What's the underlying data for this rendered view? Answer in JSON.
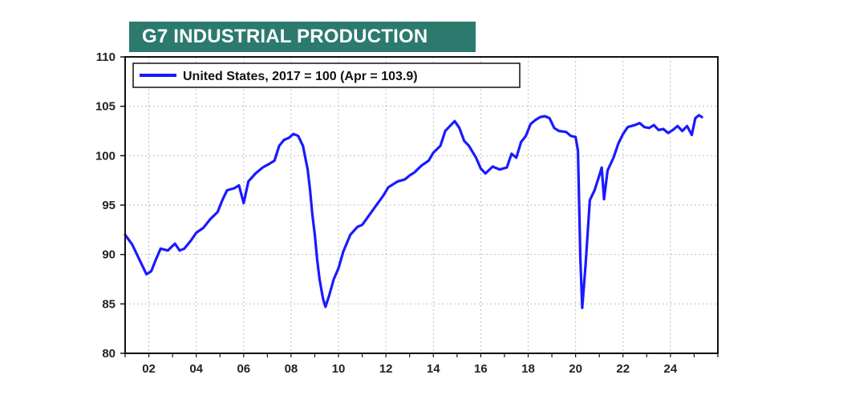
{
  "header": {
    "title": "G7 INDUSTRIAL PRODUCTION"
  },
  "legend": {
    "label": "United States, 2017 = 100 (Apr = 103.9)"
  },
  "colors": {
    "banner": "#2b7a6d",
    "series": "#1a1aff",
    "grid": "#bdbdbd"
  },
  "chart_data": {
    "type": "line",
    "title": "G7 INDUSTRIAL PRODUCTION",
    "xlabel": "",
    "ylabel": "",
    "xlim": [
      2001.0,
      2026.0
    ],
    "ylim": [
      80,
      110
    ],
    "x_ticks": [
      2002,
      2004,
      2006,
      2008,
      2010,
      2012,
      2014,
      2016,
      2018,
      2020,
      2022,
      2024
    ],
    "x_tick_labels": [
      "02",
      "04",
      "06",
      "08",
      "10",
      "12",
      "14",
      "16",
      "18",
      "20",
      "22",
      "24"
    ],
    "y_ticks": [
      80,
      85,
      90,
      95,
      100,
      105,
      110
    ],
    "grid": true,
    "legend_position": "top-left",
    "series": [
      {
        "name": "United States, 2017 = 100 (Apr = 103.9)",
        "color": "#1a1aff",
        "points": [
          [
            2001.0,
            92.0
          ],
          [
            2001.3,
            91.0
          ],
          [
            2001.6,
            89.5
          ],
          [
            2001.9,
            88.0
          ],
          [
            2002.1,
            88.3
          ],
          [
            2002.3,
            89.5
          ],
          [
            2002.5,
            90.6
          ],
          [
            2002.8,
            90.4
          ],
          [
            2003.1,
            91.1
          ],
          [
            2003.3,
            90.4
          ],
          [
            2003.5,
            90.6
          ],
          [
            2003.8,
            91.5
          ],
          [
            2004.0,
            92.2
          ],
          [
            2004.3,
            92.7
          ],
          [
            2004.6,
            93.6
          ],
          [
            2004.9,
            94.3
          ],
          [
            2005.1,
            95.5
          ],
          [
            2005.3,
            96.5
          ],
          [
            2005.6,
            96.7
          ],
          [
            2005.8,
            97.0
          ],
          [
            2006.0,
            95.2
          ],
          [
            2006.2,
            97.4
          ],
          [
            2006.5,
            98.2
          ],
          [
            2006.8,
            98.8
          ],
          [
            2007.1,
            99.2
          ],
          [
            2007.3,
            99.5
          ],
          [
            2007.5,
            101.0
          ],
          [
            2007.7,
            101.6
          ],
          [
            2007.9,
            101.8
          ],
          [
            2008.1,
            102.2
          ],
          [
            2008.3,
            102.0
          ],
          [
            2008.5,
            101.0
          ],
          [
            2008.7,
            98.6
          ],
          [
            2008.8,
            96.5
          ],
          [
            2008.9,
            94.0
          ],
          [
            2009.0,
            92.0
          ],
          [
            2009.1,
            89.5
          ],
          [
            2009.2,
            87.5
          ],
          [
            2009.35,
            85.5
          ],
          [
            2009.45,
            84.7
          ],
          [
            2009.6,
            85.8
          ],
          [
            2009.8,
            87.5
          ],
          [
            2010.0,
            88.6
          ],
          [
            2010.2,
            90.3
          ],
          [
            2010.5,
            92.0
          ],
          [
            2010.8,
            92.8
          ],
          [
            2011.0,
            93.0
          ],
          [
            2011.3,
            94.0
          ],
          [
            2011.6,
            95.0
          ],
          [
            2011.9,
            96.0
          ],
          [
            2012.1,
            96.8
          ],
          [
            2012.5,
            97.4
          ],
          [
            2012.8,
            97.6
          ],
          [
            2013.0,
            98.0
          ],
          [
            2013.2,
            98.3
          ],
          [
            2013.5,
            99.0
          ],
          [
            2013.8,
            99.5
          ],
          [
            2014.0,
            100.3
          ],
          [
            2014.3,
            101.0
          ],
          [
            2014.5,
            102.5
          ],
          [
            2014.7,
            103.0
          ],
          [
            2014.9,
            103.5
          ],
          [
            2015.1,
            102.8
          ],
          [
            2015.3,
            101.5
          ],
          [
            2015.5,
            101.0
          ],
          [
            2015.8,
            99.8
          ],
          [
            2016.0,
            98.7
          ],
          [
            2016.2,
            98.2
          ],
          [
            2016.5,
            98.9
          ],
          [
            2016.8,
            98.6
          ],
          [
            2017.1,
            98.8
          ],
          [
            2017.3,
            100.2
          ],
          [
            2017.5,
            99.8
          ],
          [
            2017.7,
            101.4
          ],
          [
            2017.9,
            102.0
          ],
          [
            2018.1,
            103.2
          ],
          [
            2018.3,
            103.6
          ],
          [
            2018.5,
            103.9
          ],
          [
            2018.7,
            104.0
          ],
          [
            2018.9,
            103.8
          ],
          [
            2019.1,
            102.8
          ],
          [
            2019.3,
            102.5
          ],
          [
            2019.6,
            102.4
          ],
          [
            2019.8,
            102.0
          ],
          [
            2020.0,
            101.9
          ],
          [
            2020.1,
            100.5
          ],
          [
            2020.2,
            89.5
          ],
          [
            2020.28,
            84.6
          ],
          [
            2020.42,
            89.0
          ],
          [
            2020.6,
            95.5
          ],
          [
            2020.8,
            96.5
          ],
          [
            2021.0,
            98.0
          ],
          [
            2021.1,
            98.8
          ],
          [
            2021.2,
            95.6
          ],
          [
            2021.35,
            98.5
          ],
          [
            2021.6,
            99.8
          ],
          [
            2021.8,
            101.2
          ],
          [
            2022.0,
            102.2
          ],
          [
            2022.2,
            102.9
          ],
          [
            2022.5,
            103.1
          ],
          [
            2022.7,
            103.3
          ],
          [
            2022.9,
            102.9
          ],
          [
            2023.1,
            102.8
          ],
          [
            2023.3,
            103.1
          ],
          [
            2023.5,
            102.6
          ],
          [
            2023.7,
            102.7
          ],
          [
            2023.9,
            102.3
          ],
          [
            2024.1,
            102.6
          ],
          [
            2024.3,
            103.0
          ],
          [
            2024.5,
            102.5
          ],
          [
            2024.7,
            103.0
          ],
          [
            2024.9,
            102.1
          ],
          [
            2025.05,
            103.8
          ],
          [
            2025.2,
            104.1
          ],
          [
            2025.33,
            103.9
          ]
        ]
      }
    ]
  }
}
